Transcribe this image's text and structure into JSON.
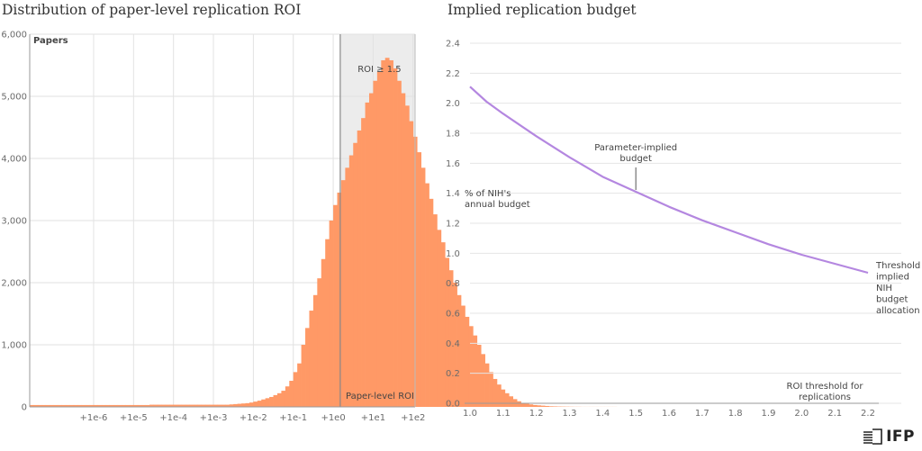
{
  "chart_data": [
    {
      "type": "bar",
      "title": "Distribution of paper-level replication ROI",
      "ylabel": "Papers",
      "xlabel": "Paper-level ROI",
      "x_scale": "log10",
      "xlim_log10": [
        -7.6,
        2.05
      ],
      "ylim": [
        0,
        6000
      ],
      "yticks": [
        0,
        1000,
        2000,
        3000,
        4000,
        5000,
        6000
      ],
      "ytick_labels": [
        "0",
        "1,000",
        "2,000",
        "3,000",
        "4,000",
        "5,000",
        "6,000"
      ],
      "xticks_log10": [
        -6,
        -5,
        -4,
        -3,
        -2,
        -1,
        0,
        1,
        2
      ],
      "xtick_labels": [
        "+1e-6",
        "+1e-5",
        "+1e-4",
        "+1e-3",
        "+1e-2",
        "+1e-1",
        "+1e0",
        "+1e1",
        "+1e2"
      ],
      "shaded_region_label": "ROI ≥ 1.5",
      "shaded_from_log10": 0.176,
      "bar_color": "#ff9966",
      "bin_width_log10": 0.1,
      "bin_start_log10": -7.6,
      "counts": [
        30,
        30,
        30,
        30,
        30,
        30,
        30,
        30,
        30,
        30,
        30,
        30,
        30,
        30,
        30,
        30,
        30,
        30,
        30,
        30,
        30,
        30,
        30,
        30,
        30,
        30,
        30,
        30,
        30,
        30,
        35,
        35,
        35,
        35,
        35,
        35,
        35,
        35,
        35,
        35,
        35,
        35,
        35,
        35,
        35,
        35,
        35,
        35,
        35,
        35,
        40,
        45,
        50,
        55,
        60,
        70,
        85,
        100,
        120,
        140,
        160,
        190,
        220,
        260,
        330,
        420,
        560,
        700,
        1000,
        1270,
        1550,
        1800,
        2070,
        2380,
        2700,
        3000,
        3250,
        3450,
        3650,
        3850,
        4050,
        4250,
        4450,
        4650,
        4900,
        5050,
        5250,
        5400,
        5580,
        5620,
        5580,
        5450,
        5250,
        5050,
        4850,
        4600,
        4350,
        4100,
        3850,
        3600,
        3350,
        3100,
        2850,
        2650,
        2400,
        2200,
        2000,
        1800,
        1630,
        1450,
        1300,
        1150,
        1000,
        850,
        700,
        560,
        450,
        360,
        280,
        220,
        170,
        125,
        90,
        65,
        50,
        40,
        30,
        25,
        20,
        15,
        10,
        8,
        6,
        5,
        4,
        3,
        2,
        2,
        1,
        1,
        1,
        1,
        1,
        1,
        1,
        1,
        1
      ]
    },
    {
      "type": "line",
      "title": "Implied replication budget",
      "xlabel": "ROI threshold for replications",
      "ylabel": "% of NIH's annual budget",
      "xlim": [
        1.0,
        2.2
      ],
      "ylim": [
        0.0,
        2.4
      ],
      "xticks": [
        1.0,
        1.1,
        1.2,
        1.3,
        1.4,
        1.5,
        1.6,
        1.7,
        1.8,
        1.9,
        2.0,
        2.1,
        2.2
      ],
      "xtick_labels": [
        "1.0",
        "1.1",
        "1.2",
        "1.3",
        "1.4",
        "1.5",
        "1.6",
        "1.7",
        "1.8",
        "1.9",
        "2.0",
        "2.1",
        "2.2"
      ],
      "yticks": [
        0.0,
        0.2,
        0.4,
        0.6,
        0.8,
        1.0,
        1.2,
        1.4,
        1.6,
        1.8,
        2.0,
        2.2,
        2.4
      ],
      "ytick_labels": [
        "0.0",
        "0.2",
        "0.4",
        "0.6",
        "0.8",
        "1.0",
        "1.2",
        "1.4",
        "1.6",
        "1.8",
        "2.0",
        "2.2",
        "2.4"
      ],
      "line_color": "#b487e0",
      "x": [
        1.0,
        1.05,
        1.1,
        1.2,
        1.3,
        1.4,
        1.5,
        1.6,
        1.7,
        1.8,
        1.9,
        2.0,
        2.1,
        2.2
      ],
      "y": [
        2.11,
        2.01,
        1.93,
        1.78,
        1.64,
        1.51,
        1.41,
        1.31,
        1.22,
        1.14,
        1.06,
        0.99,
        0.93,
        0.87
      ],
      "annotations": [
        {
          "lines": [
            "Parameter-implied",
            "budget"
          ],
          "x": 1.5,
          "y": 1.41
        },
        {
          "lines": [
            "Threshold",
            "implied",
            "NIH",
            "budget",
            "allocation"
          ]
        }
      ]
    }
  ],
  "logo": {
    "text": "IFP"
  }
}
